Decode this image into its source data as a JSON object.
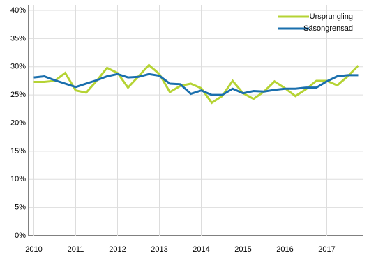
{
  "chart_data": {
    "type": "line",
    "categories": [
      "2010",
      null,
      null,
      null,
      "2011",
      null,
      null,
      null,
      "2012",
      null,
      null,
      null,
      "2013",
      null,
      null,
      null,
      "2014",
      null,
      null,
      null,
      "2015",
      null,
      null,
      null,
      "2016",
      null,
      null,
      null,
      "2017",
      null,
      null,
      null
    ],
    "series": [
      {
        "name": "Ursprungling",
        "color": "#b5d334",
        "values": [
          27.3,
          27.3,
          27.5,
          28.9,
          25.8,
          25.4,
          27.5,
          29.8,
          28.9,
          26.3,
          28.3,
          30.3,
          28.7,
          25.5,
          26.6,
          27.0,
          26.2,
          23.6,
          24.8,
          27.5,
          25.3,
          24.3,
          25.6,
          27.4,
          26.2,
          24.8,
          26.0,
          27.5,
          27.5,
          26.7,
          28.3,
          30.2
        ]
      },
      {
        "name": "Säsongrensad",
        "color": "#1a6fad",
        "values": [
          28.1,
          28.3,
          27.6,
          27.0,
          26.4,
          27.0,
          27.6,
          28.3,
          28.7,
          28.1,
          28.2,
          28.7,
          28.4,
          27.0,
          26.9,
          25.2,
          25.8,
          25.0,
          25.0,
          26.1,
          25.3,
          25.7,
          25.6,
          25.9,
          26.1,
          26.1,
          26.3,
          26.3,
          27.4,
          28.3,
          28.5,
          28.5
        ]
      }
    ],
    "ylim": [
      0,
      40
    ],
    "yticks": [
      {
        "value": 0,
        "label": "0%"
      },
      {
        "value": 5,
        "label": "5%"
      },
      {
        "value": 10,
        "label": "10%"
      },
      {
        "value": 15,
        "label": "15%"
      },
      {
        "value": 20,
        "label": "20%"
      },
      {
        "value": 25,
        "label": "25%"
      },
      {
        "value": 30,
        "label": "30%"
      },
      {
        "value": 35,
        "label": "35%"
      },
      {
        "value": 40,
        "label": "40%"
      }
    ],
    "grid": true,
    "legend": "top-right"
  }
}
